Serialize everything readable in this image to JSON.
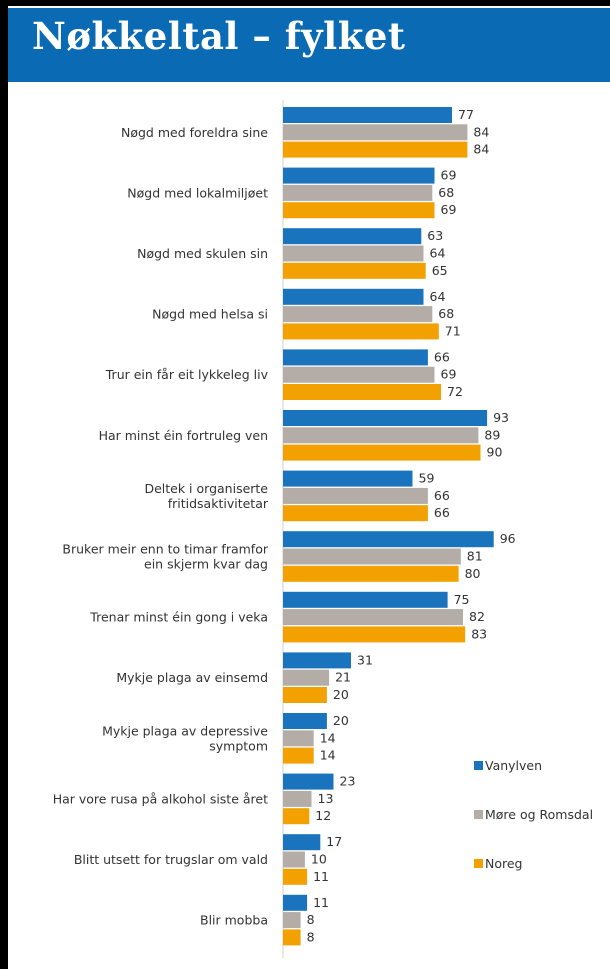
{
  "header": {
    "title": "Nøkkeltal – fylket"
  },
  "chart_data": {
    "type": "bar",
    "orientation": "horizontal",
    "categories": [
      [
        "Nøgd med foreldra sine"
      ],
      [
        "Nøgd med lokalmiljøet"
      ],
      [
        "Nøgd med skulen sin"
      ],
      [
        "Nøgd med helsa si"
      ],
      [
        "Trur ein får eit lykkeleg liv"
      ],
      [
        "Har minst éin fortruleg ven"
      ],
      [
        "Deltek i organiserte",
        "fritidsaktivitetar"
      ],
      [
        "Bruker meir enn to timar framfor",
        "ein skjerm kvar dag"
      ],
      [
        "Trenar minst éin gong i veka"
      ],
      [
        "Mykje plaga av einsemd"
      ],
      [
        "Mykje plaga av depressive",
        "symptom"
      ],
      [
        "Har vore rusa på alkohol siste året"
      ],
      [
        "Blitt utsett for trugslar om vald"
      ],
      [
        "Blir mobba"
      ]
    ],
    "series": [
      {
        "name": "Vanylven",
        "color": "#1a73bd",
        "values": [
          77,
          69,
          63,
          64,
          66,
          93,
          59,
          96,
          75,
          31,
          20,
          23,
          17,
          11
        ]
      },
      {
        "name": "Møre og Romsdal",
        "color": "#b3aca7",
        "values": [
          84,
          68,
          64,
          68,
          69,
          89,
          66,
          81,
          82,
          21,
          14,
          13,
          10,
          8
        ]
      },
      {
        "name": "Noreg",
        "color": "#f2a100",
        "values": [
          84,
          69,
          65,
          71,
          72,
          90,
          66,
          80,
          83,
          20,
          14,
          12,
          11,
          8
        ]
      }
    ],
    "xlim": [
      0,
      100
    ],
    "legend_position": "right",
    "grid": false
  }
}
